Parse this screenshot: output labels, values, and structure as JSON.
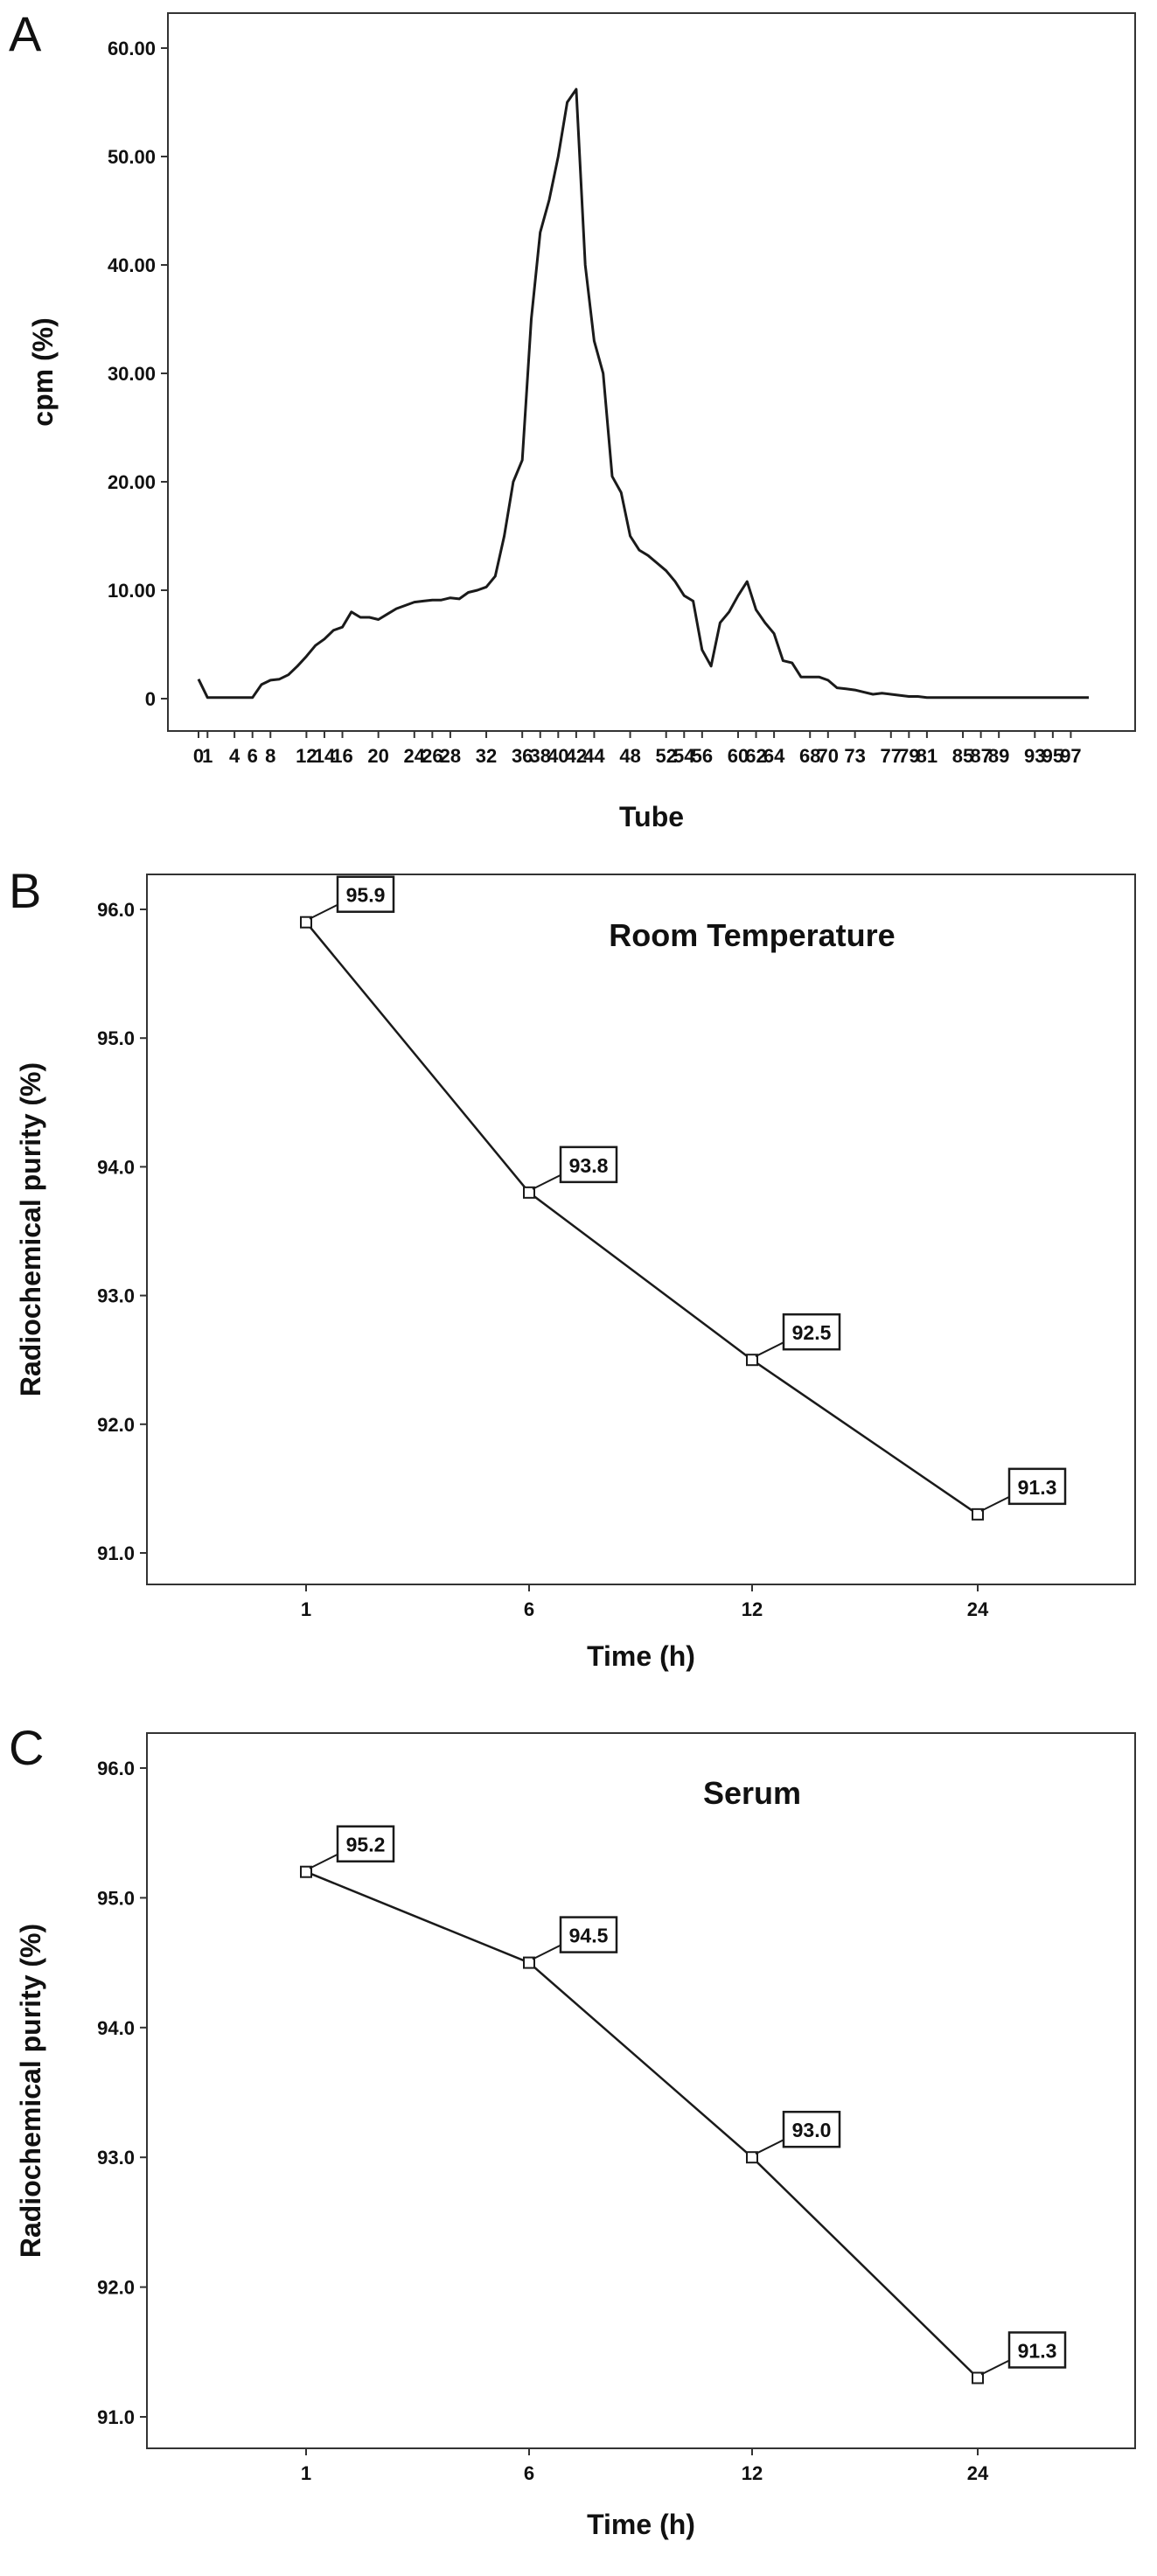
{
  "chart_data": [
    {
      "panel": "A",
      "type": "line",
      "title": "",
      "xlabel": "Tube",
      "ylabel": "cpm (%)",
      "ylim": [
        0,
        60
      ],
      "xlim": [
        0,
        99
      ],
      "x_ticks": [
        "0",
        "1",
        "4",
        "6",
        "8",
        "12",
        "14",
        "16",
        "20",
        "24",
        "26",
        "28",
        "32",
        "36",
        "38",
        "40",
        "42",
        "44",
        "48",
        "52",
        "54",
        "56",
        "60",
        "62",
        "64",
        "68",
        "70",
        "73",
        "77",
        "79",
        "81",
        "85",
        "87",
        "89",
        "93",
        "95",
        "97"
      ],
      "y_ticks": [
        "0",
        "10.00",
        "20.00",
        "30.00",
        "40.00",
        "50.00",
        "60.00"
      ],
      "y_tick_values": [
        0,
        10,
        20,
        30,
        40,
        50,
        60
      ],
      "grid": false,
      "series": [
        {
          "x": [
            0,
            1,
            2,
            3,
            4,
            5,
            6,
            7,
            8,
            9,
            10,
            11,
            12,
            13,
            14,
            15,
            16,
            17,
            18,
            19,
            20,
            21,
            22,
            23,
            24,
            25,
            26,
            27,
            28,
            29,
            30,
            31,
            32,
            33,
            34,
            35,
            36,
            37,
            38,
            39,
            40,
            41,
            42,
            43,
            44,
            45,
            46,
            47,
            48,
            49,
            50,
            51,
            52,
            53,
            54,
            55,
            56,
            57,
            58,
            59,
            60,
            61,
            62,
            63,
            64,
            65,
            66,
            67,
            68,
            69,
            70,
            71,
            72,
            73,
            74,
            75,
            76,
            77,
            78,
            79,
            80,
            81,
            82,
            83,
            84,
            85,
            86,
            87,
            88,
            89,
            90,
            91,
            92,
            93,
            94,
            95,
            96,
            97,
            98,
            99
          ],
          "y": [
            1.8,
            0.1,
            0.1,
            0.1,
            0.1,
            0.1,
            0.1,
            1.3,
            1.7,
            1.8,
            2.2,
            3.0,
            3.9,
            4.9,
            5.5,
            6.3,
            6.6,
            8.0,
            7.5,
            7.5,
            7.3,
            7.8,
            8.3,
            8.6,
            8.9,
            9.0,
            9.1,
            9.1,
            9.3,
            9.2,
            9.8,
            10.0,
            10.3,
            11.3,
            15.0,
            20.0,
            22.0,
            35.0,
            43.0,
            46.0,
            50.0,
            55.0,
            56.2,
            40.0,
            33.0,
            30.0,
            20.5,
            19.0,
            15.0,
            13.7,
            13.2,
            12.5,
            11.8,
            10.8,
            9.5,
            9.0,
            4.5,
            3.0,
            7.0,
            8.0,
            9.5,
            10.8,
            8.2,
            7.0,
            6.0,
            3.5,
            3.3,
            2.0,
            2.0,
            2.0,
            1.7,
            1.0,
            0.9,
            0.8,
            0.6,
            0.4,
            0.5,
            0.4,
            0.3,
            0.2,
            0.2,
            0.1,
            0.1,
            0.1,
            0.1,
            0.1,
            0.1,
            0.1,
            0.1,
            0.1,
            0.1,
            0.1,
            0.1,
            0.1,
            0.1,
            0.1,
            0.1,
            0.1,
            0.1,
            0.1
          ]
        }
      ]
    },
    {
      "panel": "B",
      "type": "line",
      "title": "Room Temperature",
      "xlabel": "Time (h)",
      "ylabel": "Radiochemical purity (%)",
      "categories": [
        "1",
        "6",
        "12",
        "24"
      ],
      "ylim": [
        90.75,
        96.25
      ],
      "y_ticks": [
        "91.0",
        "92.0",
        "93.0",
        "94.0",
        "95.0",
        "96.0"
      ],
      "y_tick_values": [
        91,
        92,
        93,
        94,
        95,
        96
      ],
      "grid": false,
      "series": [
        {
          "values": [
            95.9,
            93.8,
            92.5,
            91.3
          ],
          "labels": [
            "95.9",
            "93.8",
            "92.5",
            "91.3"
          ]
        }
      ]
    },
    {
      "panel": "C",
      "type": "line",
      "title": "Serum",
      "xlabel": "Time (h)",
      "ylabel": "Radiochemical purity (%)",
      "categories": [
        "1",
        "6",
        "12",
        "24"
      ],
      "ylim": [
        90.75,
        96.25
      ],
      "y_ticks": [
        "91.0",
        "92.0",
        "93.0",
        "94.0",
        "95.0",
        "96.0"
      ],
      "y_tick_values": [
        91,
        92,
        93,
        94,
        95,
        96
      ],
      "grid": false,
      "series": [
        {
          "values": [
            95.2,
            94.5,
            93.0,
            91.3
          ],
          "labels": [
            "95.2",
            "94.5",
            "93.0",
            "91.3"
          ]
        }
      ]
    }
  ],
  "panel_letters": [
    "A",
    "B",
    "C"
  ],
  "colors": {
    "line": "#1a1a1a",
    "axis": "#333333",
    "background": "#ffffff"
  }
}
